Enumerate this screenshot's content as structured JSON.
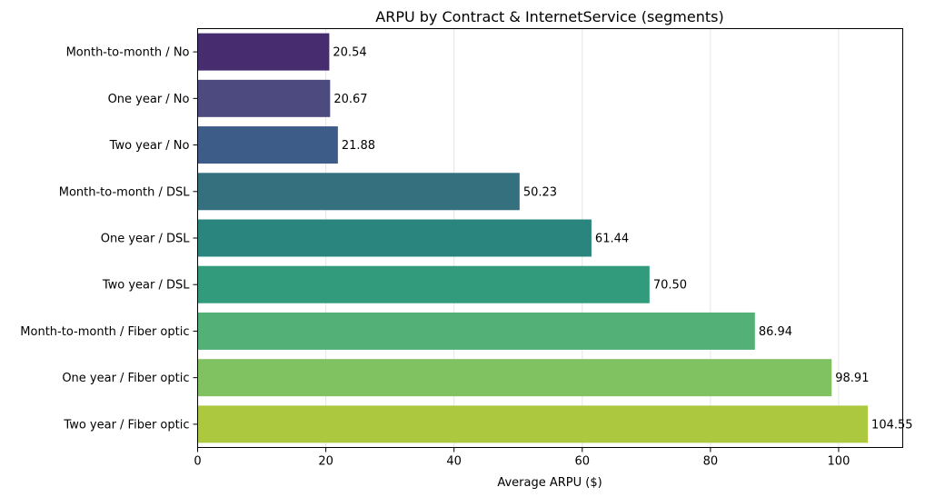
{
  "chart_data": {
    "type": "bar",
    "orientation": "horizontal",
    "title": "ARPU by Contract & InternetService (segments)",
    "xlabel": "Average ARPU ($)",
    "ylabel": "",
    "xlim": [
      0,
      110
    ],
    "xticks": [
      0,
      20,
      40,
      60,
      80,
      100
    ],
    "grid": "vertical",
    "categories": [
      "Month-to-month / No",
      "One year / No",
      "Two year / No",
      "Month-to-month / DSL",
      "One year / DSL",
      "Two year / DSL",
      "Month-to-month / Fiber optic",
      "One year / Fiber optic",
      "Two year / Fiber optic"
    ],
    "values": [
      20.54,
      20.67,
      21.88,
      50.23,
      61.44,
      70.5,
      86.94,
      98.91,
      104.55
    ],
    "value_labels": [
      "20.54",
      "20.67",
      "21.88",
      "50.23",
      "61.44",
      "70.50",
      "86.94",
      "98.91",
      "104.55"
    ],
    "colors": [
      "#472C70",
      "#4C4A7F",
      "#3D5C87",
      "#35707F",
      "#2A857E",
      "#329B7B",
      "#53B077",
      "#80C262",
      "#ABC83E"
    ]
  }
}
